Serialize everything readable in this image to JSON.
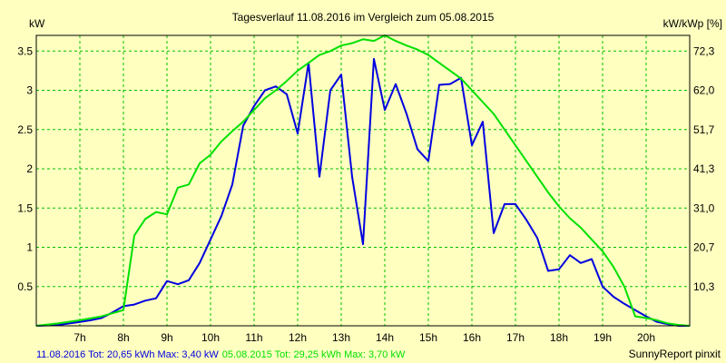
{
  "chart_data": {
    "type": "line",
    "title": "Tagesverlauf 11.08.2016 im Vergleich zum 05.08.2015",
    "ylabel_left": "kW",
    "ylabel_right": "kW/kWp [%]",
    "footer_right": "SunnyReport pinxit",
    "xlim": [
      6,
      21
    ],
    "ylim": [
      0,
      3.7
    ],
    "x_ticks": [
      "7h",
      "8h",
      "9h",
      "10h",
      "11h",
      "12h",
      "13h",
      "14h",
      "15h",
      "16h",
      "17h",
      "18h",
      "19h",
      "20h"
    ],
    "x_tick_values": [
      7,
      8,
      9,
      10,
      11,
      12,
      13,
      14,
      15,
      16,
      17,
      18,
      19,
      20
    ],
    "y_ticks": [
      "0.5",
      "1",
      "1.5",
      "2",
      "2.5",
      "3",
      "3.5"
    ],
    "y_tick_values": [
      0.5,
      1,
      1.5,
      2,
      2.5,
      3,
      3.5
    ],
    "y2_ticks": [
      "10,3",
      "20,7",
      "31,0",
      "41,3",
      "51,7",
      "62,0",
      "72,3"
    ],
    "grid": true,
    "series": [
      {
        "name": "11.08.2016",
        "legend": "11.08.2016 Tot: 20,65 kWh Max: 3,40 kW",
        "color": "#0000E0",
        "x": [
          6.0,
          6.5,
          7.0,
          7.25,
          7.5,
          7.75,
          8.0,
          8.25,
          8.5,
          8.75,
          9.0,
          9.25,
          9.5,
          9.75,
          10.0,
          10.25,
          10.5,
          10.75,
          11.0,
          11.25,
          11.5,
          11.75,
          12.0,
          12.25,
          12.5,
          12.75,
          13.0,
          13.25,
          13.5,
          13.75,
          14.0,
          14.25,
          14.5,
          14.75,
          15.0,
          15.25,
          15.5,
          15.75,
          16.0,
          16.25,
          16.5,
          16.75,
          17.0,
          17.25,
          17.5,
          17.75,
          18.0,
          18.25,
          18.5,
          18.75,
          19.0,
          19.25,
          19.5,
          19.75,
          20.0,
          20.25,
          20.5,
          20.75,
          21.0
        ],
        "y": [
          0,
          0.01,
          0.05,
          0.07,
          0.1,
          0.17,
          0.25,
          0.27,
          0.32,
          0.35,
          0.57,
          0.53,
          0.58,
          0.8,
          1.1,
          1.4,
          1.8,
          2.55,
          2.8,
          3.0,
          3.05,
          2.95,
          2.45,
          3.35,
          1.9,
          3.0,
          3.2,
          1.9,
          1.04,
          3.4,
          2.75,
          3.08,
          2.7,
          2.25,
          2.1,
          3.07,
          3.08,
          3.16,
          2.3,
          2.6,
          1.18,
          1.55,
          1.55,
          1.35,
          1.12,
          0.7,
          0.72,
          0.9,
          0.8,
          0.85,
          0.5,
          0.37,
          0.28,
          0.2,
          0.12,
          0.05,
          0.02,
          0,
          0
        ]
      },
      {
        "name": "05.08.2015",
        "legend": "05.08.2015 Tot: 29,25 kWh Max: 3,70 kW",
        "color": "#00E000",
        "x": [
          6.0,
          6.5,
          7.0,
          7.5,
          8.0,
          8.25,
          8.5,
          8.75,
          9.0,
          9.25,
          9.5,
          9.75,
          10.0,
          10.25,
          10.5,
          10.75,
          11.0,
          11.25,
          11.5,
          11.75,
          12.0,
          12.25,
          12.5,
          12.75,
          13.0,
          13.25,
          13.5,
          13.75,
          14.0,
          14.25,
          14.5,
          14.75,
          15.0,
          15.25,
          15.5,
          15.75,
          16.0,
          16.25,
          16.5,
          16.75,
          17.0,
          17.25,
          17.5,
          17.75,
          18.0,
          18.25,
          18.5,
          18.75,
          19.0,
          19.25,
          19.5,
          19.75,
          20.0,
          20.25,
          20.5,
          20.75,
          21.0
        ],
        "y": [
          0,
          0.03,
          0.07,
          0.12,
          0.2,
          1.15,
          1.36,
          1.45,
          1.42,
          1.76,
          1.8,
          2.07,
          2.18,
          2.35,
          2.48,
          2.6,
          2.75,
          2.9,
          3.0,
          3.12,
          3.25,
          3.35,
          3.45,
          3.5,
          3.57,
          3.6,
          3.65,
          3.63,
          3.7,
          3.63,
          3.57,
          3.52,
          3.45,
          3.35,
          3.25,
          3.15,
          3.0,
          2.85,
          2.7,
          2.5,
          2.3,
          2.1,
          1.9,
          1.7,
          1.52,
          1.37,
          1.25,
          1.1,
          0.95,
          0.75,
          0.5,
          0.12,
          0.1,
          0.07,
          0.03,
          0.01,
          0
        ]
      }
    ]
  }
}
